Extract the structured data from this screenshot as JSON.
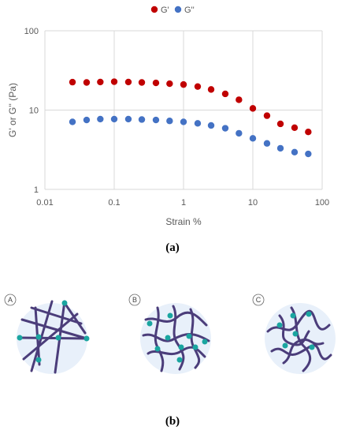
{
  "chart_data": {
    "type": "scatter",
    "x_scale": "log",
    "y_scale": "log",
    "xlabel": "Strain %",
    "ylabel": "G' or G'' (Pa)",
    "xlim": [
      0.01,
      100
    ],
    "ylim": [
      1,
      100
    ],
    "x_ticks": [
      "0.01",
      "0.1",
      "1",
      "10",
      "100"
    ],
    "y_ticks": [
      "1",
      "10",
      "100"
    ],
    "grid": true,
    "legend_position": "top",
    "series": [
      {
        "name": "G'",
        "color": "#c00000",
        "x": [
          0.025,
          0.04,
          0.063,
          0.1,
          0.16,
          0.25,
          0.4,
          0.63,
          1.0,
          1.6,
          2.5,
          4.0,
          6.3,
          10,
          16,
          25,
          40,
          63
        ],
        "y": [
          22.5,
          22.3,
          22.6,
          22.8,
          22.6,
          22.3,
          22.0,
          21.5,
          21.0,
          19.8,
          18.2,
          16.0,
          13.5,
          10.5,
          8.5,
          6.7,
          6.0,
          5.3
        ]
      },
      {
        "name": "G''",
        "color": "#4472c4",
        "x": [
          0.025,
          0.04,
          0.063,
          0.1,
          0.16,
          0.25,
          0.4,
          0.63,
          1.0,
          1.6,
          2.5,
          4.0,
          6.3,
          10,
          16,
          25,
          40,
          63
        ],
        "y": [
          7.1,
          7.5,
          7.7,
          7.7,
          7.7,
          7.6,
          7.5,
          7.3,
          7.1,
          6.8,
          6.4,
          5.9,
          5.1,
          4.4,
          3.8,
          3.3,
          2.95,
          2.8
        ]
      }
    ]
  },
  "captions": {
    "a": "(a)",
    "b": "(b)"
  },
  "diagram": {
    "panels": [
      {
        "letter": "A",
        "fill": "#e8f0fa",
        "line_color": "#4b3d7a",
        "node_color": "#1aa5a0"
      },
      {
        "letter": "B",
        "fill": "#e8f0fa",
        "line_color": "#4b3d7a",
        "node_color": "#1aa5a0"
      },
      {
        "letter": "C",
        "fill": "#e8f0fa",
        "line_color": "#4b3d7a",
        "node_color": "#1aa5a0"
      }
    ]
  }
}
